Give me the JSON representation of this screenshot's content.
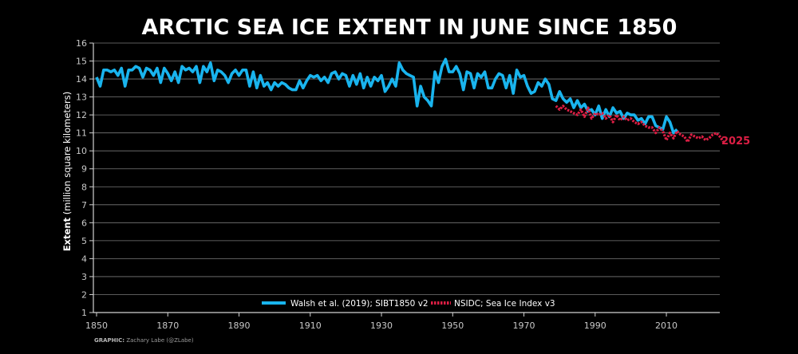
{
  "chart_data": {
    "type": "line",
    "title": "ARCTIC SEA ICE EXTENT IN JUNE SINCE 1850",
    "ylabel_bold": "Extent",
    "ylabel_rest": " (million square kilometers)",
    "xlim": [
      1850,
      2025
    ],
    "ylim": [
      1,
      16
    ],
    "xticks": [
      1850,
      1870,
      1890,
      1910,
      1930,
      1950,
      1970,
      1990,
      2010
    ],
    "yticks": [
      1,
      2,
      3,
      4,
      5,
      6,
      7,
      8,
      9,
      10,
      11,
      12,
      13,
      14,
      15,
      16
    ],
    "grid": true,
    "legend": "bottom-center",
    "end_label": "2025",
    "colors": {
      "walsh": "#19b4ee",
      "nsidc": "#dc1e44",
      "grid": "#7a7a7a",
      "axis": "#d2d2d2"
    },
    "series": [
      {
        "name": "Walsh et al. (2019); SIBT1850 v2",
        "style": "solid",
        "x_start": 1850,
        "values": [
          14.1,
          13.6,
          14.5,
          14.5,
          14.4,
          14.5,
          14.2,
          14.6,
          13.6,
          14.5,
          14.5,
          14.7,
          14.6,
          14.1,
          14.6,
          14.5,
          14.2,
          14.6,
          13.8,
          14.6,
          14.3,
          13.9,
          14.4,
          13.8,
          14.7,
          14.5,
          14.6,
          14.4,
          14.7,
          13.8,
          14.7,
          14.4,
          14.9,
          13.9,
          14.5,
          14.4,
          14.2,
          13.8,
          14.3,
          14.5,
          14.2,
          14.5,
          14.5,
          13.6,
          14.4,
          13.5,
          14.2,
          13.6,
          13.8,
          13.4,
          13.8,
          13.6,
          13.8,
          13.7,
          13.5,
          13.4,
          13.4,
          13.9,
          13.5,
          13.9,
          14.2,
          14.1,
          14.2,
          13.9,
          14.1,
          13.8,
          14.3,
          14.4,
          14.0,
          14.3,
          14.2,
          13.6,
          14.2,
          13.7,
          14.3,
          13.5,
          14.1,
          13.6,
          14.1,
          13.9,
          14.2,
          13.3,
          13.6,
          14.0,
          13.6,
          14.9,
          14.5,
          14.3,
          14.2,
          14.1,
          12.5,
          13.6,
          13.0,
          12.8,
          12.5,
          14.4,
          13.8,
          14.7,
          15.1,
          14.4,
          14.4,
          14.7,
          14.3,
          13.4,
          14.4,
          14.3,
          13.5,
          14.3,
          14.1,
          14.4,
          13.5,
          13.5,
          14.0,
          14.3,
          14.2,
          13.5,
          14.2,
          13.2,
          14.5,
          14.1,
          14.2,
          13.6,
          13.2,
          13.3,
          13.8,
          13.6,
          14.0,
          13.7,
          12.9,
          12.8,
          13.3,
          12.9,
          12.7,
          12.9,
          12.4,
          12.8,
          12.4,
          12.6,
          12.2,
          12.3,
          12.0,
          12.5,
          11.8,
          12.3,
          11.9,
          12.4,
          12.1,
          12.2,
          11.8,
          12.1,
          12.0,
          12.0,
          11.7,
          11.8,
          11.5,
          11.9,
          11.9,
          11.4,
          11.3,
          11.2,
          11.9,
          11.6,
          11.0,
          11.2
        ]
      },
      {
        "name": "NSIDC; Sea Ice Index v3",
        "style": "dotted",
        "x_start": 1979,
        "values": [
          12.5,
          12.3,
          12.5,
          12.3,
          12.2,
          12.1,
          12.0,
          12.3,
          11.9,
          12.4,
          11.8,
          12.1,
          12.0,
          12.1,
          11.8,
          12.0,
          11.6,
          12.0,
          11.7,
          11.9,
          11.7,
          11.8,
          11.6,
          11.5,
          11.6,
          11.4,
          11.3,
          11.3,
          11.0,
          11.3,
          11.1,
          10.6,
          11.0,
          10.7,
          11.1,
          10.9,
          10.8,
          10.5,
          10.9,
          10.8,
          10.7,
          10.8,
          10.6,
          10.7,
          10.9,
          11.0,
          10.8,
          10.5
        ]
      }
    ],
    "credit_bold": "GRAPHIC:",
    "credit_rest": " Zachary Labe (@ZLabe)"
  }
}
